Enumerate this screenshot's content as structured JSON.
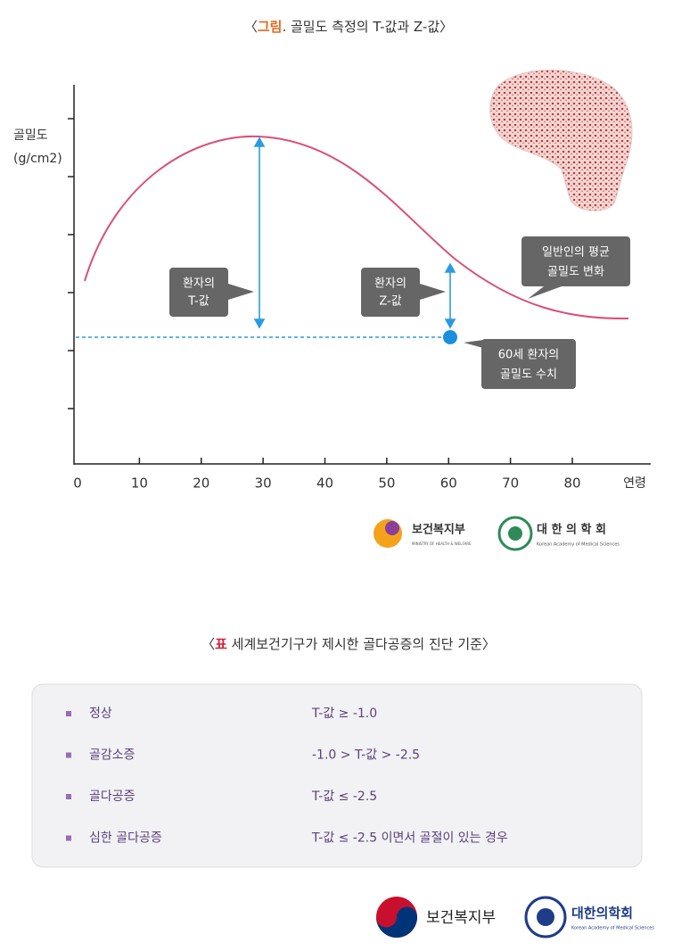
{
  "figure": {
    "title_open": "〈",
    "title_highlight": "그림",
    "title_rest": ". 골밀도 측정의 T-값과 Z-값〉",
    "y_label": [
      "골밀도",
      "(g/cm2)"
    ],
    "x_label": "연령",
    "xticks": [
      0,
      10,
      20,
      30,
      40,
      50,
      60,
      70,
      80
    ],
    "callouts": {
      "t_value": [
        "환자의",
        "T-값"
      ],
      "z_value": [
        "환자의",
        "Z-값"
      ],
      "patient": [
        "60세 환자의",
        "골밀도 수치"
      ],
      "average": [
        "일반인의 평균",
        "골밀도 변화"
      ]
    },
    "logos": {
      "ministry": "보건복지부",
      "ministry_en": "MINISTRY OF HEALTH & WELFARE",
      "academy": "대 한 의 학 회",
      "academy_en": "Korean Academy of Medical Sciences"
    }
  },
  "table": {
    "title_open": "〈",
    "title_highlight": "표",
    "title_rest": " 세계보건기구가 제시한 골다공증의 진단 기준〉",
    "rows": [
      [
        "정상",
        "T-값 ≥ -1.0"
      ],
      [
        "골감소증",
        "-1.0 > T-값 > -2.5"
      ],
      [
        "골다공증",
        "T-값 ≤ -2.5"
      ],
      [
        "심한 골다공증",
        "T-값 ≤ -2.5 이면서 골절이 있는 경우"
      ]
    ]
  },
  "footer": {
    "ministry": "보건복지부",
    "academy": "대한의학회",
    "academy_en": "Korean Academy of Medical Sciences"
  }
}
